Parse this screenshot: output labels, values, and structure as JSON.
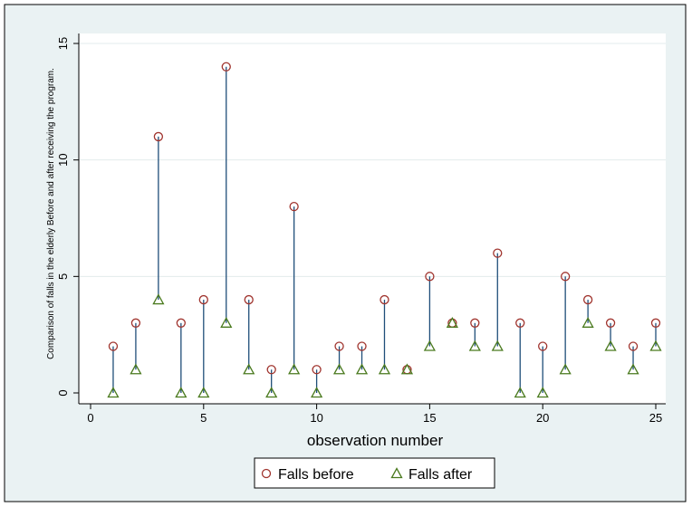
{
  "chart_data": {
    "type": "scatter",
    "xlabel": "observation number",
    "ylabel": "Comparison of falls in the elderly Before and after receiving the program.",
    "xlim": [
      0,
      25
    ],
    "ylim": [
      0,
      15
    ],
    "xticks": [
      0,
      5,
      10,
      15,
      20,
      25
    ],
    "yticks": [
      0,
      5,
      10,
      15
    ],
    "grid": true,
    "legend_position": "bottom",
    "x": [
      1,
      2,
      3,
      4,
      5,
      6,
      7,
      8,
      9,
      10,
      11,
      12,
      13,
      14,
      15,
      16,
      17,
      18,
      19,
      20,
      21,
      22,
      23,
      24,
      25
    ],
    "series": [
      {
        "name": "Falls before",
        "marker": "circle",
        "color": "#a0342e",
        "values": [
          2,
          3,
          11,
          3,
          4,
          14,
          4,
          1,
          8,
          1,
          2,
          2,
          4,
          1,
          5,
          3,
          3,
          6,
          3,
          2,
          5,
          4,
          3,
          2,
          3
        ]
      },
      {
        "name": "Falls after",
        "marker": "triangle",
        "color": "#4a7a1e",
        "values": [
          0,
          1,
          4,
          0,
          0,
          3,
          1,
          0,
          1,
          0,
          1,
          1,
          1,
          1,
          2,
          3,
          2,
          2,
          0,
          0,
          1,
          3,
          2,
          1,
          2
        ]
      }
    ],
    "connector_color": "#1f4e79"
  }
}
